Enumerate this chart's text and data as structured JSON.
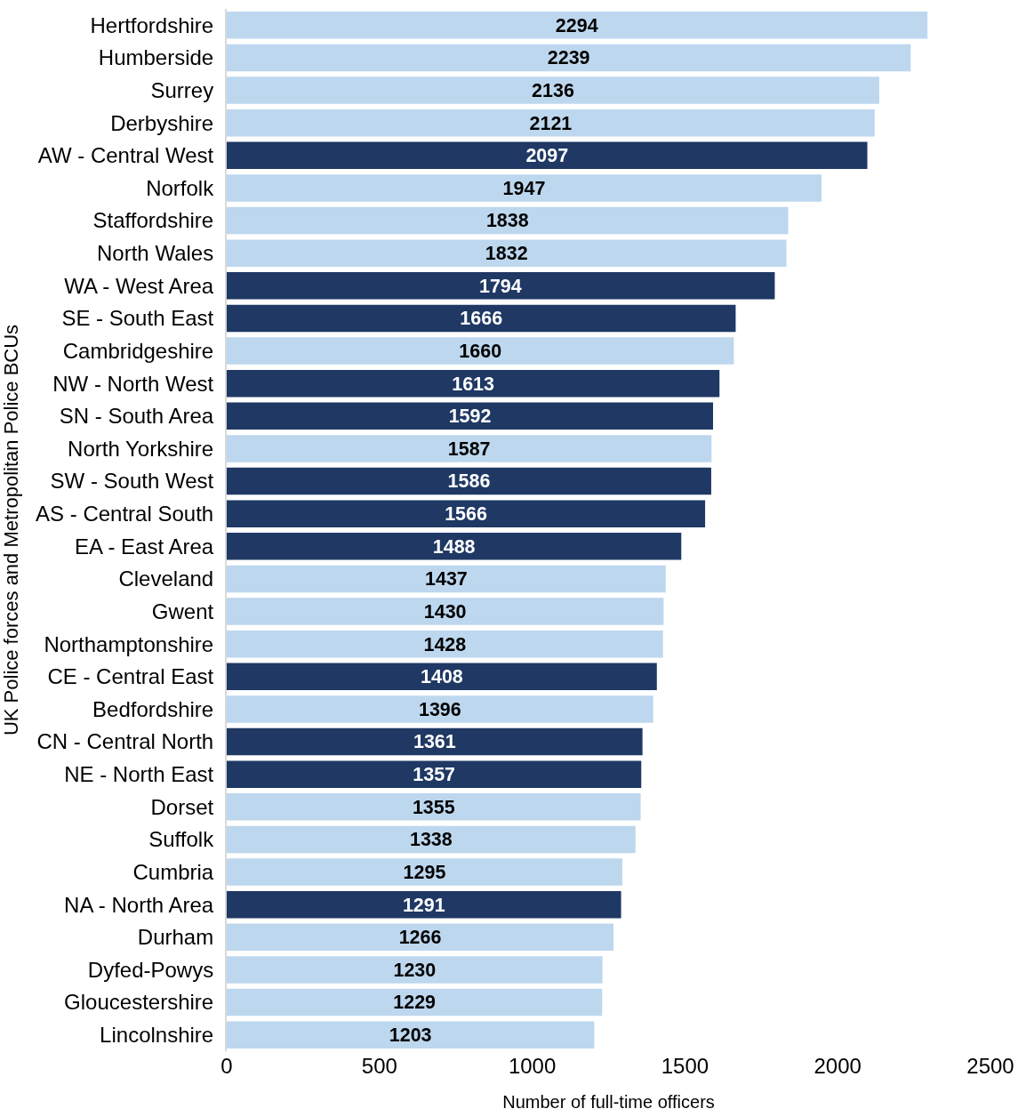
{
  "chart_data": {
    "type": "bar",
    "orientation": "horizontal",
    "xlabel": "Number of full-time officers",
    "ylabel": "UK Police forces and Metropolitan Police BCUs",
    "categories": [
      "Hertfordshire",
      "Humberside",
      "Surrey",
      "Derbyshire",
      "AW - Central West",
      "Norfolk",
      "Staffordshire",
      "North Wales",
      "WA - West Area",
      "SE - South East",
      "Cambridgeshire",
      "NW - North West",
      "SN - South Area",
      "North Yorkshire",
      "SW - South West",
      "AS - Central South",
      "EA - East Area",
      "Cleveland",
      "Gwent",
      "Northamptonshire",
      "CE - Central East",
      "Bedfordshire",
      "CN - Central North",
      "NE - North East",
      "Dorset",
      "Suffolk",
      "Cumbria",
      "NA - North Area",
      "Durham",
      "Dyfed-Powys",
      "Gloucestershire",
      "Lincolnshire"
    ],
    "values": [
      2294,
      2239,
      2136,
      2121,
      2097,
      1947,
      1838,
      1832,
      1794,
      1666,
      1660,
      1613,
      1592,
      1587,
      1586,
      1566,
      1488,
      1437,
      1430,
      1428,
      1408,
      1396,
      1361,
      1357,
      1355,
      1338,
      1295,
      1291,
      1266,
      1230,
      1229,
      1203
    ],
    "colors": [
      "#bdd7ee",
      "#bdd7ee",
      "#bdd7ee",
      "#bdd7ee",
      "#1f3864",
      "#bdd7ee",
      "#bdd7ee",
      "#bdd7ee",
      "#1f3864",
      "#1f3864",
      "#bdd7ee",
      "#1f3864",
      "#1f3864",
      "#bdd7ee",
      "#1f3864",
      "#1f3864",
      "#1f3864",
      "#bdd7ee",
      "#bdd7ee",
      "#bdd7ee",
      "#1f3864",
      "#bdd7ee",
      "#1f3864",
      "#1f3864",
      "#bdd7ee",
      "#bdd7ee",
      "#bdd7ee",
      "#1f3864",
      "#bdd7ee",
      "#bdd7ee",
      "#bdd7ee",
      "#bdd7ee"
    ],
    "xlim": [
      0,
      2500
    ],
    "xticks": [
      0,
      500,
      1000,
      1500,
      2000,
      2500
    ],
    "data_labels": true,
    "legend": false
  }
}
